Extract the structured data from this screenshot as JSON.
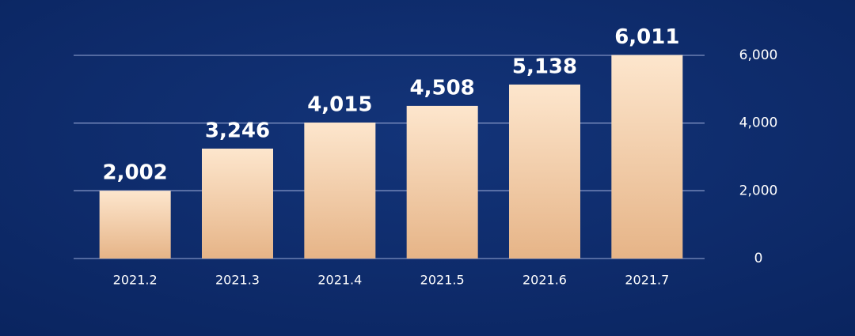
{
  "chart_data": {
    "type": "bar",
    "categories": [
      "2021.2",
      "2021.3",
      "2021.4",
      "2021.5",
      "2021.6",
      "2021.7"
    ],
    "values": [
      2002,
      3246,
      4015,
      4508,
      5138,
      6011
    ],
    "value_labels": [
      "2,002",
      "3,246",
      "4,015",
      "4,508",
      "5,138",
      "6,011"
    ],
    "ylim": [
      0,
      6000
    ],
    "yticks": [
      0,
      {
        "value": 2000,
        "label": "2,000"
      },
      {
        "value": 4000,
        "label": "4,000"
      },
      {
        "value": 6000,
        "label": "6,000"
      }
    ],
    "grid": true,
    "y_axis_side": "right"
  }
}
